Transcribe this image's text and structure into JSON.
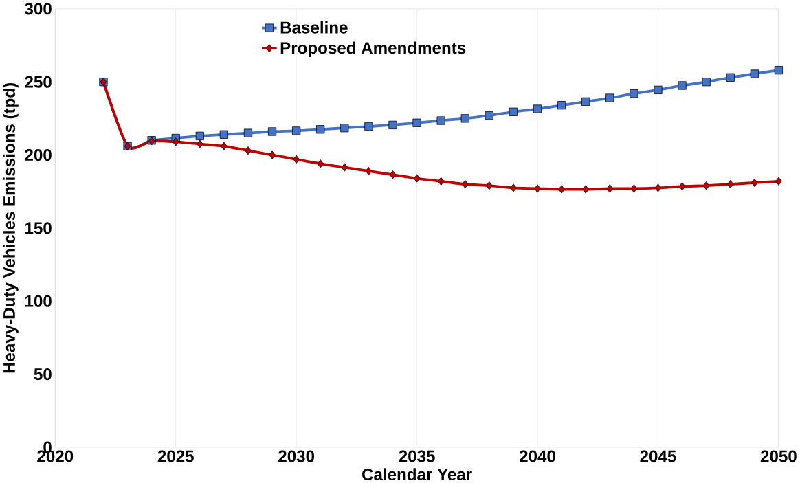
{
  "chart_data": {
    "type": "line",
    "xlabel": "Calendar Year",
    "ylabel": "Heavy-Duty Vehicles Emissions (tpd)",
    "x": [
      2022,
      2023,
      2024,
      2025,
      2026,
      2027,
      2028,
      2029,
      2030,
      2031,
      2032,
      2033,
      2034,
      2035,
      2036,
      2037,
      2038,
      2039,
      2040,
      2041,
      2042,
      2043,
      2044,
      2045,
      2046,
      2047,
      2048,
      2049,
      2050
    ],
    "series": [
      {
        "name": "Baseline",
        "color": "#4472c4",
        "marker": "square",
        "values": [
          250,
          206,
          210,
          211.5,
          213,
          214,
          215,
          216,
          216.5,
          217.5,
          218.5,
          219.5,
          220.5,
          222,
          223.5,
          225,
          227,
          229.5,
          231.5,
          234,
          236.5,
          239,
          242,
          244.5,
          247.5,
          250,
          253,
          255.5,
          258
        ]
      },
      {
        "name": "Proposed Amendments",
        "color": "#c00000",
        "marker": "diamond",
        "values": [
          250,
          206,
          209.5,
          209,
          207.5,
          206,
          203,
          200,
          197,
          194,
          191.5,
          189,
          186.5,
          184,
          182,
          180,
          179,
          177.5,
          177,
          176.5,
          176.5,
          177,
          177,
          177.5,
          178.5,
          179,
          180,
          181,
          182
        ]
      }
    ],
    "xlim": [
      2020,
      2050
    ],
    "xticks": [
      2020,
      2025,
      2030,
      2035,
      2040,
      2045,
      2050
    ],
    "ylim": [
      0,
      300
    ],
    "yticks": [
      0,
      50,
      100,
      150,
      200,
      250,
      300
    ],
    "grid": "x",
    "legend": "top left",
    "line_style": "solid"
  }
}
